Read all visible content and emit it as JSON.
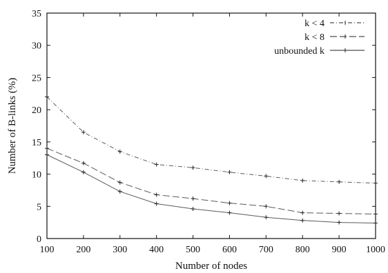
{
  "chart_data": {
    "type": "line",
    "title": "",
    "xlabel": "Number of nodes",
    "ylabel": "Number of B-links (%)",
    "xlim": [
      100,
      1000
    ],
    "ylim": [
      0,
      35
    ],
    "xticks": [
      100,
      200,
      300,
      400,
      500,
      600,
      700,
      800,
      900,
      1000
    ],
    "yticks": [
      0,
      5,
      10,
      15,
      20,
      25,
      30,
      35
    ],
    "grid": false,
    "legend_position": "top-right",
    "series": [
      {
        "name": "k < 4",
        "color": "#222222",
        "style": "dashed",
        "x": [
          100,
          200,
          300,
          400,
          500,
          600,
          700,
          800,
          900,
          1000
        ],
        "y": [
          22.0,
          16.5,
          13.5,
          11.5,
          11.0,
          10.3,
          9.7,
          9.0,
          8.8,
          8.6
        ]
      },
      {
        "name": "k < 8",
        "color": "#222222",
        "style": "longdash",
        "x": [
          100,
          200,
          300,
          400,
          500,
          600,
          700,
          800,
          900,
          1000
        ],
        "y": [
          14.0,
          11.7,
          8.7,
          6.8,
          6.2,
          5.5,
          5.0,
          4.0,
          3.9,
          3.8
        ]
      },
      {
        "name": "unbounded k",
        "color": "#222222",
        "style": "solid",
        "x": [
          100,
          200,
          300,
          400,
          500,
          600,
          700,
          800,
          900,
          1000
        ],
        "y": [
          13.0,
          10.3,
          7.3,
          5.4,
          4.6,
          4.0,
          3.3,
          2.8,
          2.5,
          2.4
        ]
      }
    ]
  }
}
